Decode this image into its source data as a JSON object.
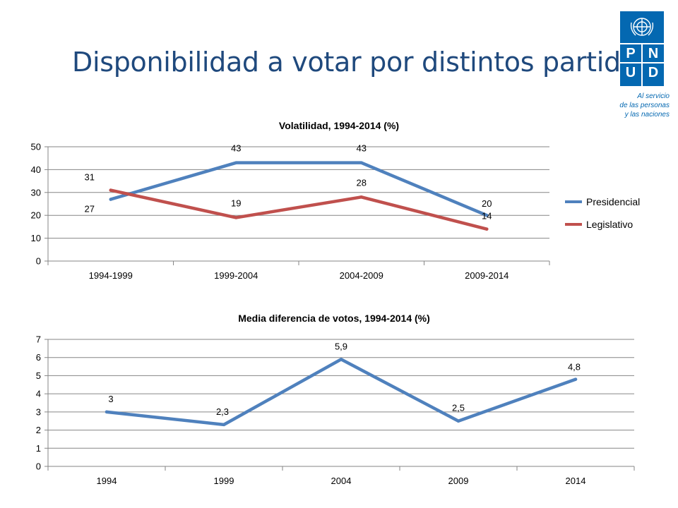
{
  "slide": {
    "title": "Disponibilidad a votar por distintos partidos"
  },
  "logo": {
    "letters": [
      "P",
      "N",
      "U",
      "D"
    ],
    "tagline": "Al servicio\nde las personas\ny las naciones"
  },
  "colors": {
    "presidencial": "#4f81bd",
    "legislativo": "#c0504d",
    "grid": "#868686",
    "text": "#000000",
    "title": "#1f497d",
    "brand": "#0468b1"
  },
  "chart_data": [
    {
      "type": "line",
      "title": "Volatilidad, 1994-2014 (%)",
      "xlabel": "",
      "ylabel": "",
      "categories": [
        "1994-1999",
        "1999-2004",
        "2004-2009",
        "2009-2014"
      ],
      "series": [
        {
          "name": "Presidencial",
          "values": [
            27,
            43,
            43,
            20
          ],
          "labels": [
            "27",
            "43",
            "43",
            "20"
          ]
        },
        {
          "name": "Legislativo",
          "values": [
            31,
            19,
            28,
            14
          ],
          "labels": [
            "31",
            "19",
            "28",
            "14"
          ]
        }
      ],
      "ylim": [
        0,
        50
      ],
      "yticks": [
        0,
        10,
        20,
        30,
        40,
        50
      ],
      "ytick_labels": [
        "0",
        "10",
        "20",
        "30",
        "40",
        "50"
      ],
      "grid": true,
      "legend": "right"
    },
    {
      "type": "line",
      "title": "Media diferencia de votos, 1994-2014 (%)",
      "xlabel": "",
      "ylabel": "",
      "categories": [
        "1994",
        "1999",
        "2004",
        "2009",
        "2014"
      ],
      "series": [
        {
          "values": [
            3,
            2.3,
            5.9,
            2.5,
            4.8
          ],
          "labels": [
            "3",
            "2,3",
            "5,9",
            "2,5",
            "4,8"
          ]
        }
      ],
      "ylim": [
        0,
        7
      ],
      "yticks": [
        0,
        1,
        2,
        3,
        4,
        5,
        6,
        7
      ],
      "ytick_labels": [
        "0",
        "1",
        "2",
        "3",
        "4",
        "5",
        "6",
        "7"
      ],
      "grid": true,
      "legend": "none"
    }
  ]
}
